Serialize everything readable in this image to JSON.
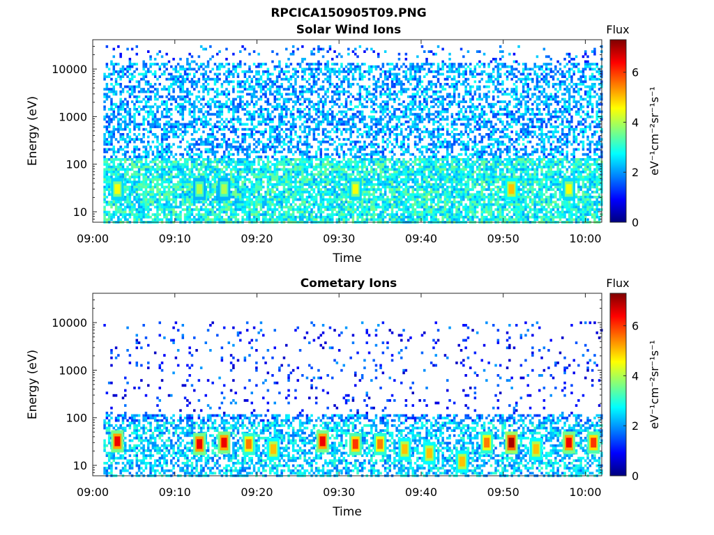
{
  "figure_title": "RPCICA150905T09.PNG",
  "chart_data": [
    {
      "type": "heatmap",
      "title": "Solar Wind Ions",
      "xlabel": "Time",
      "ylabel": "Energy (eV)",
      "x_ticks": [
        "09:00",
        "09:10",
        "09:20",
        "09:30",
        "09:40",
        "09:50",
        "10:00"
      ],
      "y_scale": "log",
      "y_ticks": [
        "10",
        "100",
        "1000",
        "10000"
      ],
      "colorbar": {
        "label": "Flux",
        "units": "eV⁻¹cm⁻²sr⁻¹s⁻¹",
        "ticks": [
          "0",
          "2",
          "4",
          "6"
        ],
        "range": [
          0,
          7.3
        ],
        "colormap": "jet"
      },
      "hot_spots": [
        {
          "time": "09:03",
          "energy_ev": 30,
          "flux": 4.5
        },
        {
          "time": "09:13",
          "energy_ev": 30,
          "flux": 4.0
        },
        {
          "time": "09:16",
          "energy_ev": 30,
          "flux": 4.0
        },
        {
          "time": "09:32",
          "energy_ev": 30,
          "flux": 4.5
        },
        {
          "time": "09:51",
          "energy_ev": 30,
          "flux": 5.0
        },
        {
          "time": "09:58",
          "energy_ev": 30,
          "flux": 4.5
        }
      ]
    },
    {
      "type": "heatmap",
      "title": "Cometary Ions",
      "xlabel": "Time",
      "ylabel": "Energy (eV)",
      "x_ticks": [
        "09:00",
        "09:10",
        "09:20",
        "09:30",
        "09:40",
        "09:50",
        "10:00"
      ],
      "y_scale": "log",
      "y_ticks": [
        "10",
        "100",
        "1000",
        "10000"
      ],
      "colorbar": {
        "label": "Flux",
        "units": "eV⁻¹cm⁻²sr⁻¹s⁻¹",
        "ticks": [
          "0",
          "2",
          "4",
          "6"
        ],
        "range": [
          0,
          7.3
        ],
        "colormap": "jet"
      },
      "hot_spots": [
        {
          "time": "09:03",
          "energy_ev": 32,
          "flux": 6.5
        },
        {
          "time": "09:13",
          "energy_ev": 28,
          "flux": 6.5
        },
        {
          "time": "09:16",
          "energy_ev": 30,
          "flux": 6.5
        },
        {
          "time": "09:19",
          "energy_ev": 28,
          "flux": 5.5
        },
        {
          "time": "09:22",
          "energy_ev": 22,
          "flux": 5.0
        },
        {
          "time": "09:28",
          "energy_ev": 32,
          "flux": 6.5
        },
        {
          "time": "09:32",
          "energy_ev": 28,
          "flux": 6.0
        },
        {
          "time": "09:35",
          "energy_ev": 28,
          "flux": 5.5
        },
        {
          "time": "09:38",
          "energy_ev": 22,
          "flux": 5.0
        },
        {
          "time": "09:41",
          "energy_ev": 18,
          "flux": 5.0
        },
        {
          "time": "09:45",
          "energy_ev": 12,
          "flux": 5.0
        },
        {
          "time": "09:48",
          "energy_ev": 30,
          "flux": 5.5
        },
        {
          "time": "09:51",
          "energy_ev": 30,
          "flux": 7.0
        },
        {
          "time": "09:54",
          "energy_ev": 22,
          "flux": 5.0
        },
        {
          "time": "09:58",
          "energy_ev": 30,
          "flux": 6.5
        },
        {
          "time": "10:01",
          "energy_ev": 30,
          "flux": 6.0
        }
      ]
    }
  ]
}
